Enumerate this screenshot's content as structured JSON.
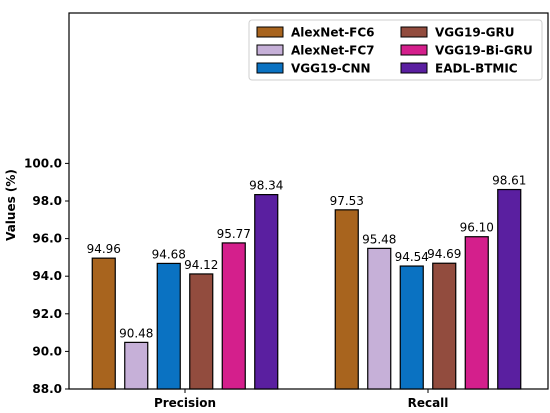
{
  "chart_data": {
    "type": "bar",
    "title": "",
    "xlabel": "",
    "ylabel": "Values (%)",
    "ylim": [
      88.0,
      108.0
    ],
    "yticks": [
      88.0,
      90.0,
      92.0,
      94.0,
      96.0,
      98.0,
      100.0
    ],
    "categories": [
      "Precision",
      "Recall"
    ],
    "legend_position": "top-right",
    "legend_columns": 2,
    "grid": false,
    "series": [
      {
        "name": "AlexNet-FC6",
        "color": "#A8641E",
        "values": [
          94.96,
          97.53
        ],
        "labels": [
          "94.96",
          "97.53"
        ]
      },
      {
        "name": "AlexNet-FC7",
        "color": "#C6B0D8",
        "values": [
          90.48,
          95.48
        ],
        "labels": [
          "90.48",
          "95.48"
        ]
      },
      {
        "name": "VGG19-CNN",
        "color": "#0A72C2",
        "values": [
          94.68,
          94.54
        ],
        "labels": [
          "94.68",
          "94.54"
        ]
      },
      {
        "name": "VGG19-GRU",
        "color": "#924C3E",
        "values": [
          94.12,
          94.69
        ],
        "labels": [
          "94.12",
          "94.69"
        ]
      },
      {
        "name": "VGG19-Bi-GRU",
        "color": "#D41F8C",
        "values": [
          95.77,
          96.1
        ],
        "labels": [
          "95.77",
          "96.10"
        ]
      },
      {
        "name": "EADL-BTMIC",
        "color": "#5A1FA0",
        "values": [
          98.34,
          98.61
        ],
        "labels": [
          "98.34",
          "98.61"
        ]
      }
    ]
  }
}
